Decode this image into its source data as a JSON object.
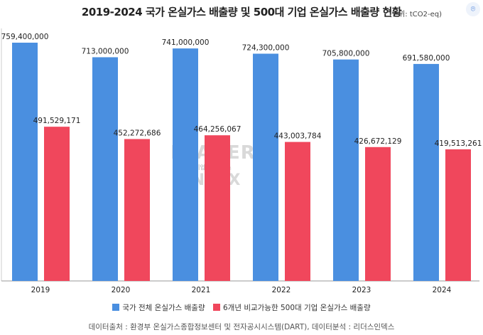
{
  "header": {
    "title": "2019-2024 국가 온실가스 배출량 및 500대 기업 온실가스 배출량 현황",
    "unit": "(단위: tCO2-eq)"
  },
  "watermark": {
    "line1": "LEADERS",
    "line2": "기업분석연구소",
    "line3": "INDEX"
  },
  "source": "데이터출처 : 환경부 온실가스종합정보센터 및 전자공시시스템(DART), 데이터분석 : 리더스인덱스",
  "colors": {
    "national": "#4a8fe0",
    "corporate": "#f0475c"
  },
  "chart_data": {
    "type": "bar",
    "title": "2019-2024 국가 온실가스 배출량 및 500대 기업 온실가스 배출량 현황",
    "categories": [
      "2019",
      "2020",
      "2021",
      "2022",
      "2023",
      "2024"
    ],
    "ylim": [
      0,
      760000000
    ],
    "grid": false,
    "legend_position": "bottom",
    "series": [
      {
        "name": "국가 전체 온실가스 배출량",
        "values": [
          759400000,
          713000000,
          741000000,
          724300000,
          705800000,
          691580000
        ],
        "labels": [
          "759,400,000",
          "713,000,000",
          "741,000,000",
          "724,300,000",
          "705,800,000",
          "691,580,000"
        ]
      },
      {
        "name": "6개년 비교가능한 500대 기업 온실가스 배출량",
        "values": [
          491529171,
          452272686,
          464256067,
          443003784,
          426672129,
          419513261
        ],
        "labels": [
          "491,529,171",
          "452,272,686",
          "464,256,067",
          "443,003,784",
          "426,672,129",
          "419,513,261"
        ]
      }
    ]
  }
}
